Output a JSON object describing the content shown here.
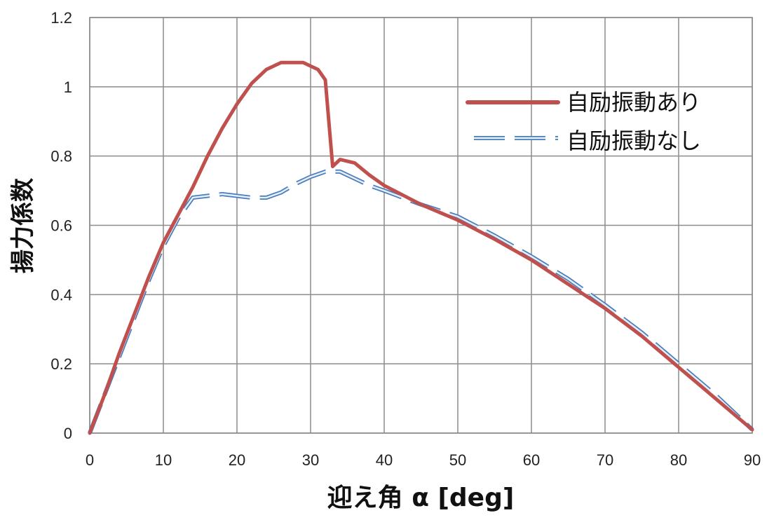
{
  "chart_data": {
    "type": "line",
    "xlabel": "迎え角 α [deg]",
    "ylabel": "揚力係数",
    "xlim": [
      0,
      90
    ],
    "ylim": [
      0,
      1.2
    ],
    "xticks": [
      "0",
      "10",
      "20",
      "30",
      "40",
      "50",
      "60",
      "70",
      "80",
      "90"
    ],
    "yticks": [
      "0",
      "0.2",
      "0.4",
      "0.6",
      "0.8",
      "1",
      "1.2"
    ],
    "grid": true,
    "legend_position": "right",
    "series": [
      {
        "name": "自励振動あり",
        "color": "#c0504d",
        "style": "solid",
        "x": [
          0,
          2,
          4,
          6,
          8,
          10,
          12,
          14,
          16,
          18,
          20,
          22,
          24,
          26,
          28,
          29,
          30,
          31,
          32,
          33,
          34,
          36,
          38,
          40,
          45,
          50,
          55,
          60,
          65,
          70,
          75,
          80,
          85,
          90
        ],
        "y": [
          0,
          0.11,
          0.23,
          0.34,
          0.45,
          0.55,
          0.63,
          0.71,
          0.8,
          0.88,
          0.95,
          1.01,
          1.05,
          1.07,
          1.07,
          1.07,
          1.06,
          1.05,
          1.02,
          0.77,
          0.79,
          0.78,
          0.745,
          0.715,
          0.66,
          0.615,
          0.56,
          0.5,
          0.43,
          0.36,
          0.28,
          0.19,
          0.1,
          0.01
        ]
      },
      {
        "name": "自励振動なし",
        "color": "#4f81bd",
        "style": "dashed",
        "x": [
          0,
          2,
          4,
          6,
          8,
          10,
          12,
          14,
          16,
          18,
          20,
          22,
          24,
          26,
          28,
          30,
          32,
          34,
          36,
          38,
          40,
          45,
          50,
          55,
          60,
          65,
          70,
          75,
          80,
          85,
          90
        ],
        "y": [
          0,
          0.11,
          0.22,
          0.33,
          0.44,
          0.54,
          0.62,
          0.68,
          0.685,
          0.69,
          0.685,
          0.68,
          0.68,
          0.695,
          0.72,
          0.74,
          0.755,
          0.755,
          0.735,
          0.715,
          0.7,
          0.66,
          0.625,
          0.57,
          0.51,
          0.445,
          0.37,
          0.29,
          0.2,
          0.11,
          0.01
        ]
      }
    ]
  }
}
